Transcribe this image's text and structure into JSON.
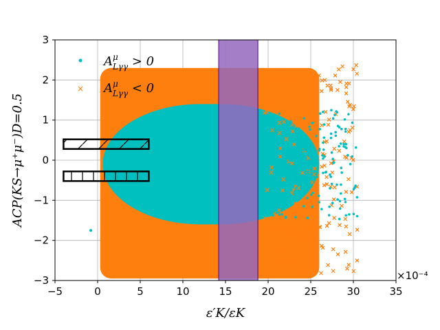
{
  "chart_data": {
    "type": "scatter",
    "title": "",
    "xlabel": "ε′K/εK",
    "ylabel": "ACP(KS→μ⁺μ⁻)D=0.5",
    "x_multiplier": "×10⁻⁴",
    "xlim": [
      -5,
      35
    ],
    "ylim": [
      -3,
      3
    ],
    "xticks": [
      -5,
      0,
      5,
      10,
      15,
      20,
      25,
      30,
      35
    ],
    "yticks": [
      -3,
      -2,
      -1,
      0,
      1,
      2,
      3
    ],
    "grid": true,
    "legend_position": "top-left",
    "colors": {
      "cyan": "#00bfbf",
      "orange": "#ff7f0e",
      "band": "#9467bd",
      "band_edge": "#4b0082"
    },
    "series": [
      {
        "name": "A^μ_{Lγγ} > 0",
        "legend_main": "A",
        "legend_sup": "μ",
        "legend_sub": "Lγγ",
        "legend_rel": " > 0",
        "marker": "dot",
        "color": "#00bfbf",
        "dense_region": {
          "x_range": [
            0.6,
            26
          ],
          "y_range": [
            -1.6,
            1.4
          ]
        }
      },
      {
        "name": "A^μ_{Lγγ} < 0",
        "legend_main": "A",
        "legend_sup": "μ",
        "legend_sub": "Lγγ",
        "legend_rel": " < 0",
        "marker": "x",
        "color": "#ff7f0e",
        "dense_region": {
          "x_range": [
            0.3,
            26
          ],
          "y_range": [
            -2.95,
            2.3
          ]
        }
      }
    ],
    "vertical_band": {
      "x_range": [
        14.2,
        18.8
      ],
      "color": "#9467bd"
    },
    "hatched_bars": [
      {
        "y_center": 0.4,
        "half_height": 0.12,
        "x_range": [
          -4,
          6
        ],
        "pattern": "diagonal"
      },
      {
        "y_center": -0.4,
        "half_height": 0.12,
        "x_range": [
          -4,
          6
        ],
        "pattern": "vertical"
      }
    ]
  }
}
